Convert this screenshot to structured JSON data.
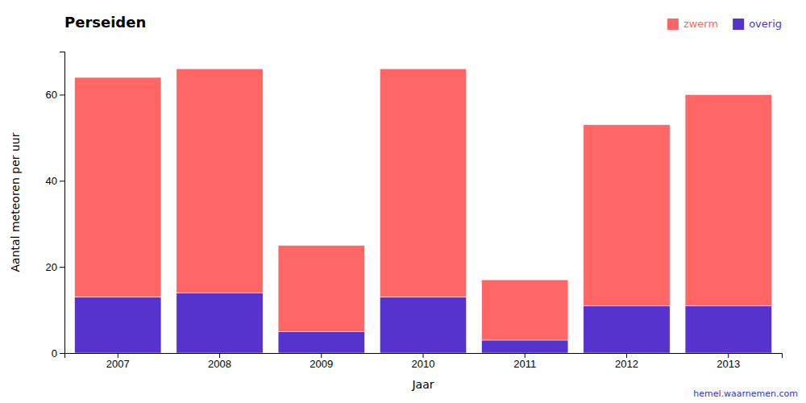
{
  "chart_data": {
    "type": "bar",
    "stacked": true,
    "title": "Perseiden",
    "xlabel": "Jaar",
    "ylabel": "Aantal meteoren per uur",
    "categories": [
      "2007",
      "2008",
      "2009",
      "2010",
      "2011",
      "2012",
      "2013"
    ],
    "series": [
      {
        "name": "overig",
        "color": "#5533CC",
        "values": [
          13,
          14,
          5,
          13,
          3,
          11,
          11
        ]
      },
      {
        "name": "zwerm",
        "color": "#FF6666",
        "values": [
          51,
          52,
          20,
          53,
          14,
          42,
          49
        ]
      }
    ],
    "ylim": [
      0,
      70
    ],
    "yticks": [
      0,
      20,
      40,
      60
    ],
    "grid": false,
    "legend": "upper right",
    "annotations": [
      {
        "text": "hemel.waarnemen.com",
        "color": "#3333CC"
      }
    ]
  }
}
